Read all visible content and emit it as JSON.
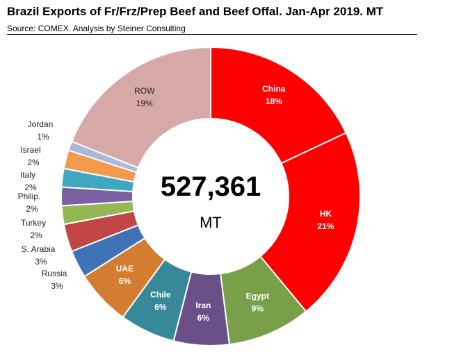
{
  "title": "Brazil Exports of Fr/Frz/Prep Beef and Beef Offal.  Jan-Apr 2019.  MT",
  "source": "Source: COMEX.  Analysis by Steiner Consulting",
  "chart_data": {
    "type": "pie",
    "donut": true,
    "center_value": "527,361",
    "center_unit": "MT",
    "slices": [
      {
        "name": "China",
        "label": "18%",
        "value": 18,
        "color": "#ff0000"
      },
      {
        "name": "HK",
        "label": "21%",
        "value": 21,
        "color": "#ff0000"
      },
      {
        "name": "Egypt",
        "label": "9%",
        "value": 9,
        "color": "#77a048"
      },
      {
        "name": "Iran",
        "label": "6%",
        "value": 6,
        "color": "#6a4f89"
      },
      {
        "name": "Chile",
        "label": "6%",
        "value": 6,
        "color": "#37899a"
      },
      {
        "name": "UAE",
        "label": "6%",
        "value": 6,
        "color": "#d27d32"
      },
      {
        "name": "Russia",
        "label": "3%",
        "value": 3,
        "color": "#3f72b6"
      },
      {
        "name": "S. Arabia",
        "label": "3%",
        "value": 3,
        "color": "#c24646"
      },
      {
        "name": "Turkey",
        "label": "2%",
        "value": 2,
        "color": "#96b854"
      },
      {
        "name": "Philip.",
        "label": "2%",
        "value": 2,
        "color": "#7a60a0"
      },
      {
        "name": "Italy",
        "label": "2%",
        "value": 2,
        "color": "#40a7c2"
      },
      {
        "name": "Israel",
        "label": "2%",
        "value": 2,
        "color": "#f59a4c"
      },
      {
        "name": "Jordan",
        "label": "1%",
        "value": 1,
        "color": "#aab8dd"
      },
      {
        "name": "ROW",
        "label": "19%",
        "value": 19,
        "color": "#d7a8a8"
      }
    ]
  }
}
